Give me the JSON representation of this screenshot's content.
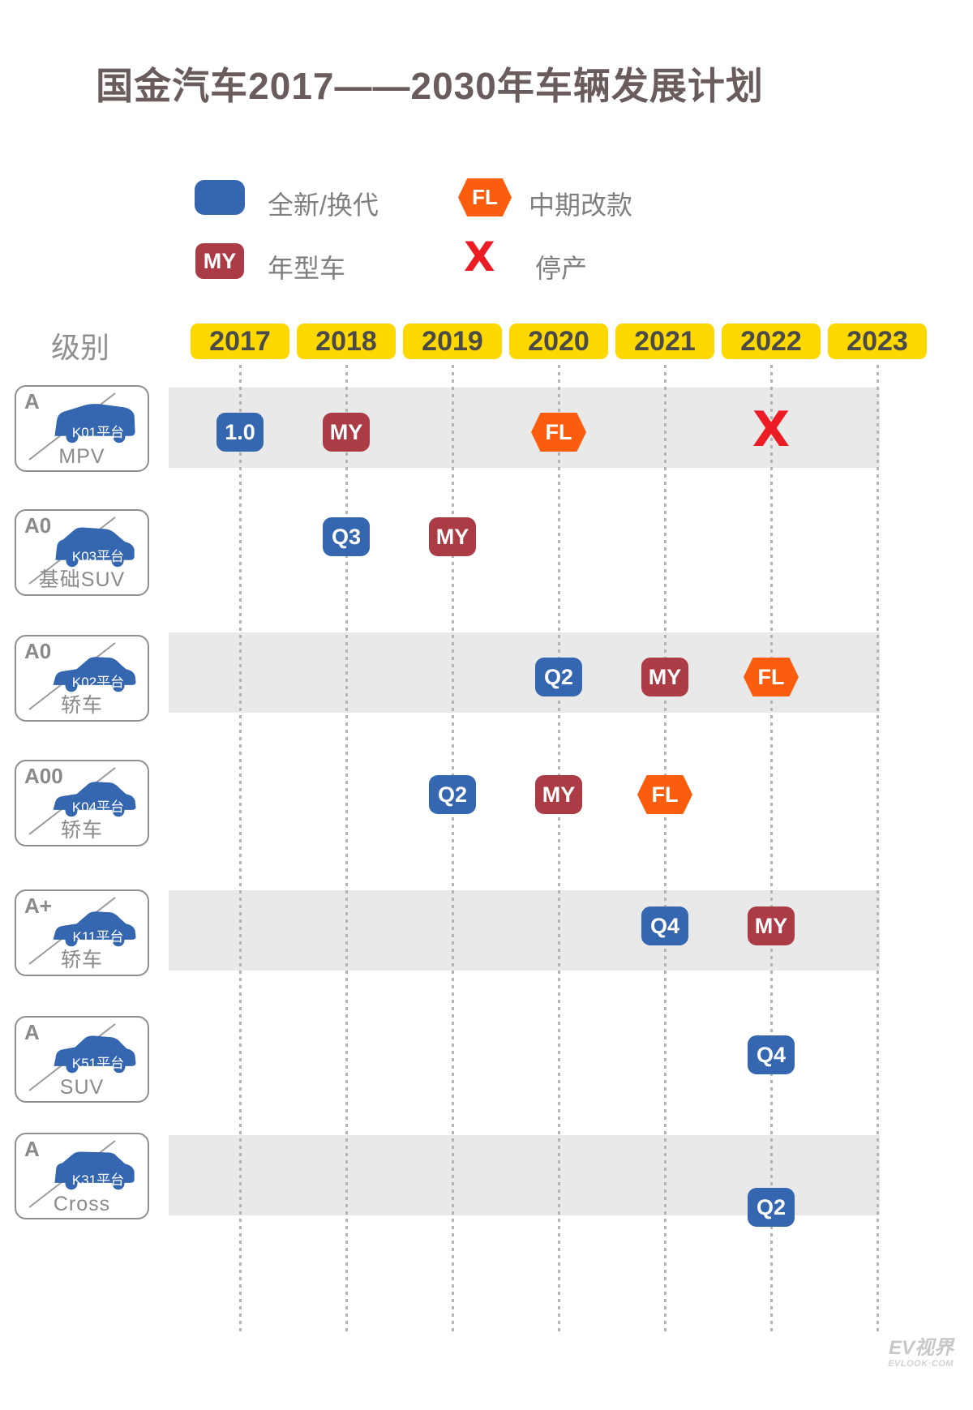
{
  "title": "国金汽车2017——2030年车辆发展计划",
  "axis": {
    "class_header": "级别"
  },
  "chart_data": {
    "type": "table",
    "title": "国金汽车2017——2030年车辆发展计划",
    "categories": [
      "2017",
      "2018",
      "2019",
      "2020",
      "2021",
      "2022",
      "2023"
    ],
    "legend": [
      {
        "type": "new",
        "badge": "",
        "label": "全新/换代"
      },
      {
        "type": "facelift",
        "badge": "FL",
        "label": "中期改款"
      },
      {
        "type": "model_year",
        "badge": "MY",
        "label": "年型车"
      },
      {
        "type": "discontinued",
        "badge": "X",
        "label": "停产"
      }
    ],
    "rows": [
      {
        "class": "A",
        "platform": "K01平台",
        "category": "MPV",
        "car": "mpv",
        "events": [
          {
            "year": "2017",
            "type": "new",
            "label": "1.0"
          },
          {
            "year": "2018",
            "type": "model_year",
            "label": "MY"
          },
          {
            "year": "2020",
            "type": "facelift",
            "label": "FL"
          },
          {
            "year": "2022",
            "type": "discontinued",
            "label": "X"
          }
        ]
      },
      {
        "class": "A0",
        "platform": "K03平台",
        "category": "基础SUV",
        "car": "small-suv",
        "events": [
          {
            "year": "2018",
            "type": "new",
            "label": "Q3"
          },
          {
            "year": "2019",
            "type": "model_year",
            "label": "MY"
          }
        ]
      },
      {
        "class": "A0",
        "platform": "K02平台",
        "category": "轿车",
        "car": "sedan",
        "events": [
          {
            "year": "2020",
            "type": "new",
            "label": "Q2"
          },
          {
            "year": "2021",
            "type": "model_year",
            "label": "MY"
          },
          {
            "year": "2022",
            "type": "facelift",
            "label": "FL"
          }
        ]
      },
      {
        "class": "A00",
        "platform": "K04平台",
        "category": "轿车",
        "car": "sedan",
        "events": [
          {
            "year": "2019",
            "type": "new",
            "label": "Q2"
          },
          {
            "year": "2020",
            "type": "model_year",
            "label": "MY"
          },
          {
            "year": "2021",
            "type": "facelift",
            "label": "FL"
          }
        ]
      },
      {
        "class": "A+",
        "platform": "K11平台",
        "category": "轿车",
        "car": "sedan",
        "events": [
          {
            "year": "2021",
            "type": "new",
            "label": "Q4"
          },
          {
            "year": "2022",
            "type": "model_year",
            "label": "MY"
          }
        ]
      },
      {
        "class": "A",
        "platform": "K51平台",
        "category": "SUV",
        "car": "suv",
        "events": [
          {
            "year": "2022",
            "type": "new",
            "label": "Q4"
          }
        ]
      },
      {
        "class": "A",
        "platform": "K31平台",
        "category": "Cross",
        "car": "cross",
        "events": [
          {
            "year": "2022",
            "type": "new",
            "label": "Q2"
          }
        ]
      }
    ]
  },
  "colors": {
    "new": "#3566b0",
    "facelift": "#fb5d0f",
    "model_year": "#ab3b45",
    "discontinued": "#ec1c24",
    "year_header_bg": "#ffd800",
    "row_band": "#e9e9e9"
  },
  "watermark": {
    "line1": "EV视界",
    "line2": "EVLOOK·COM"
  }
}
